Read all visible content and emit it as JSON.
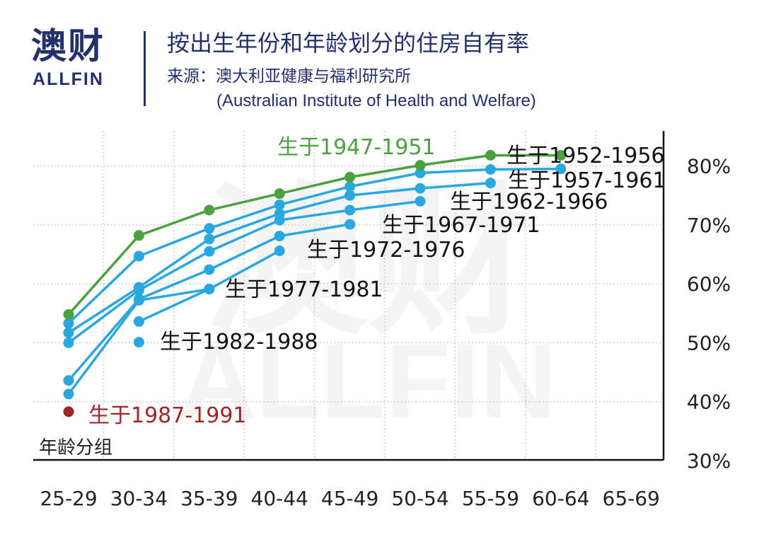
{
  "header": {
    "logo_cn": "澳财",
    "logo_en": "ALLFIN",
    "title": "按出生年份和年龄划分的住房自有率",
    "source": "来源：澳大利亚健康与福利研究所",
    "source_en": "(Australian Institute of Health and Welfare)"
  },
  "watermark": {
    "cn": "澳财",
    "en": "ALLFIN"
  },
  "colors": {
    "green": "#4aa13e",
    "blue": "#2aa7df",
    "red": "#a0252a",
    "navy": "#22306b",
    "grid": "#cfcfcf"
  },
  "chart_data": {
    "type": "line",
    "title": "按出生年份和年龄划分的住房自有率",
    "xlabel": "年龄分组",
    "ylabel": "",
    "categories": [
      "25-29",
      "30-34",
      "35-39",
      "40-44",
      "45-49",
      "50-54",
      "55-59",
      "60-64",
      "65-69"
    ],
    "ylim": [
      30,
      80
    ],
    "ytick_labels": [
      "30%",
      "40%",
      "50%",
      "60%",
      "70%",
      "80%"
    ],
    "yticks": [
      30,
      40,
      50,
      60,
      70,
      80
    ],
    "grid": true,
    "series": [
      {
        "name": "生于1947-1951",
        "color": "green",
        "values": [
          54.8,
          68.2,
          72.5,
          75.3,
          78.1,
          80.1,
          81.8,
          81.8,
          null
        ]
      },
      {
        "name": "生于1952-1956",
        "color": "blue",
        "values": [
          53.3,
          64.7,
          69.4,
          73.4,
          76.5,
          78.8,
          79.4,
          79.5,
          null
        ]
      },
      {
        "name": "生于1957-1961",
        "color": "blue",
        "values": [
          51.7,
          59.4,
          67.6,
          71.9,
          75.0,
          76.2,
          77.1,
          null,
          null
        ]
      },
      {
        "name": "生于1962-1966",
        "color": "blue",
        "values": [
          50.0,
          58.9,
          65.5,
          70.8,
          72.5,
          74.0,
          null,
          null,
          null
        ]
      },
      {
        "name": "生于1967-1971",
        "color": "blue",
        "values": [
          43.6,
          57.4,
          62.4,
          68.1,
          70.1,
          null,
          null,
          null,
          null
        ]
      },
      {
        "name": "生于1972-1976",
        "color": "blue",
        "values": [
          41.3,
          57.2,
          59.1,
          65.6,
          null,
          null,
          null,
          null,
          null
        ]
      },
      {
        "name": "生于1977-1981",
        "color": "blue",
        "values": [
          null,
          53.6,
          59.1,
          null,
          null,
          null,
          null,
          null,
          null
        ]
      },
      {
        "name": "生于1982-1988",
        "color": "blue",
        "values": [
          null,
          50.1,
          null,
          null,
          null,
          null,
          null,
          null,
          null
        ]
      },
      {
        "name": "生于1987-1991",
        "color": "red",
        "values": [
          38.3,
          null,
          null,
          null,
          null,
          null,
          null,
          null,
          null
        ]
      }
    ]
  }
}
